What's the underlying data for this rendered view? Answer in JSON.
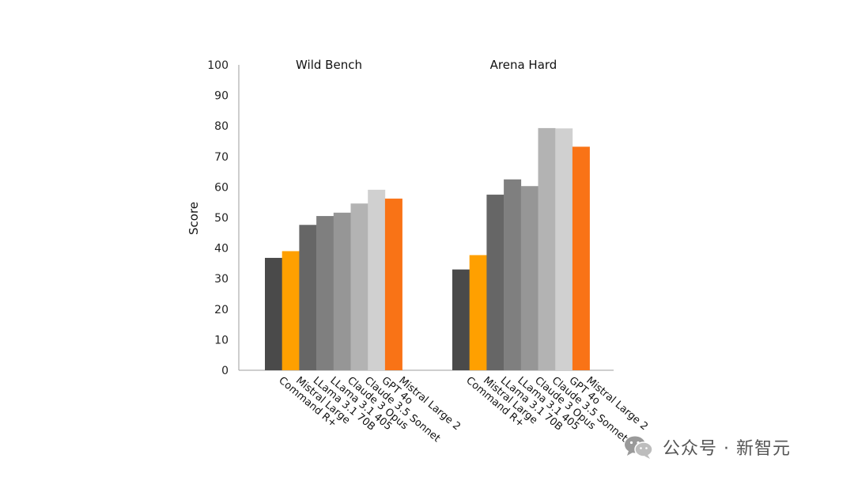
{
  "chart_data": {
    "type": "bar",
    "ylabel": "Score",
    "ylim": [
      0,
      100
    ],
    "yticks": [
      0,
      10,
      20,
      30,
      40,
      50,
      60,
      70,
      80,
      90,
      100
    ],
    "grid": false,
    "categories": [
      "Command R+",
      "Mistral Large",
      "LLama 3.1 70B",
      "LLama 3.1 405",
      "Claude 3 Opus",
      "Claude 3.5 Sonnet",
      "GPT 4o",
      "Mistral Large 2"
    ],
    "colors": [
      "#4a4a4a",
      "#ffa000",
      "#666666",
      "#7f7f7f",
      "#969696",
      "#b3b3b3",
      "#d0d0d0",
      "#f97316"
    ],
    "groups": [
      {
        "title": "Wild Bench",
        "values": [
          36.8,
          39.0,
          47.6,
          50.5,
          51.6,
          54.6,
          59.1,
          56.2
        ]
      },
      {
        "title": "Arena Hard",
        "values": [
          33.0,
          37.7,
          57.5,
          62.5,
          60.3,
          79.3,
          79.2,
          73.2
        ]
      }
    ]
  },
  "watermark": {
    "text": "公众号 · 新智元",
    "icon": "wechat-icon"
  }
}
